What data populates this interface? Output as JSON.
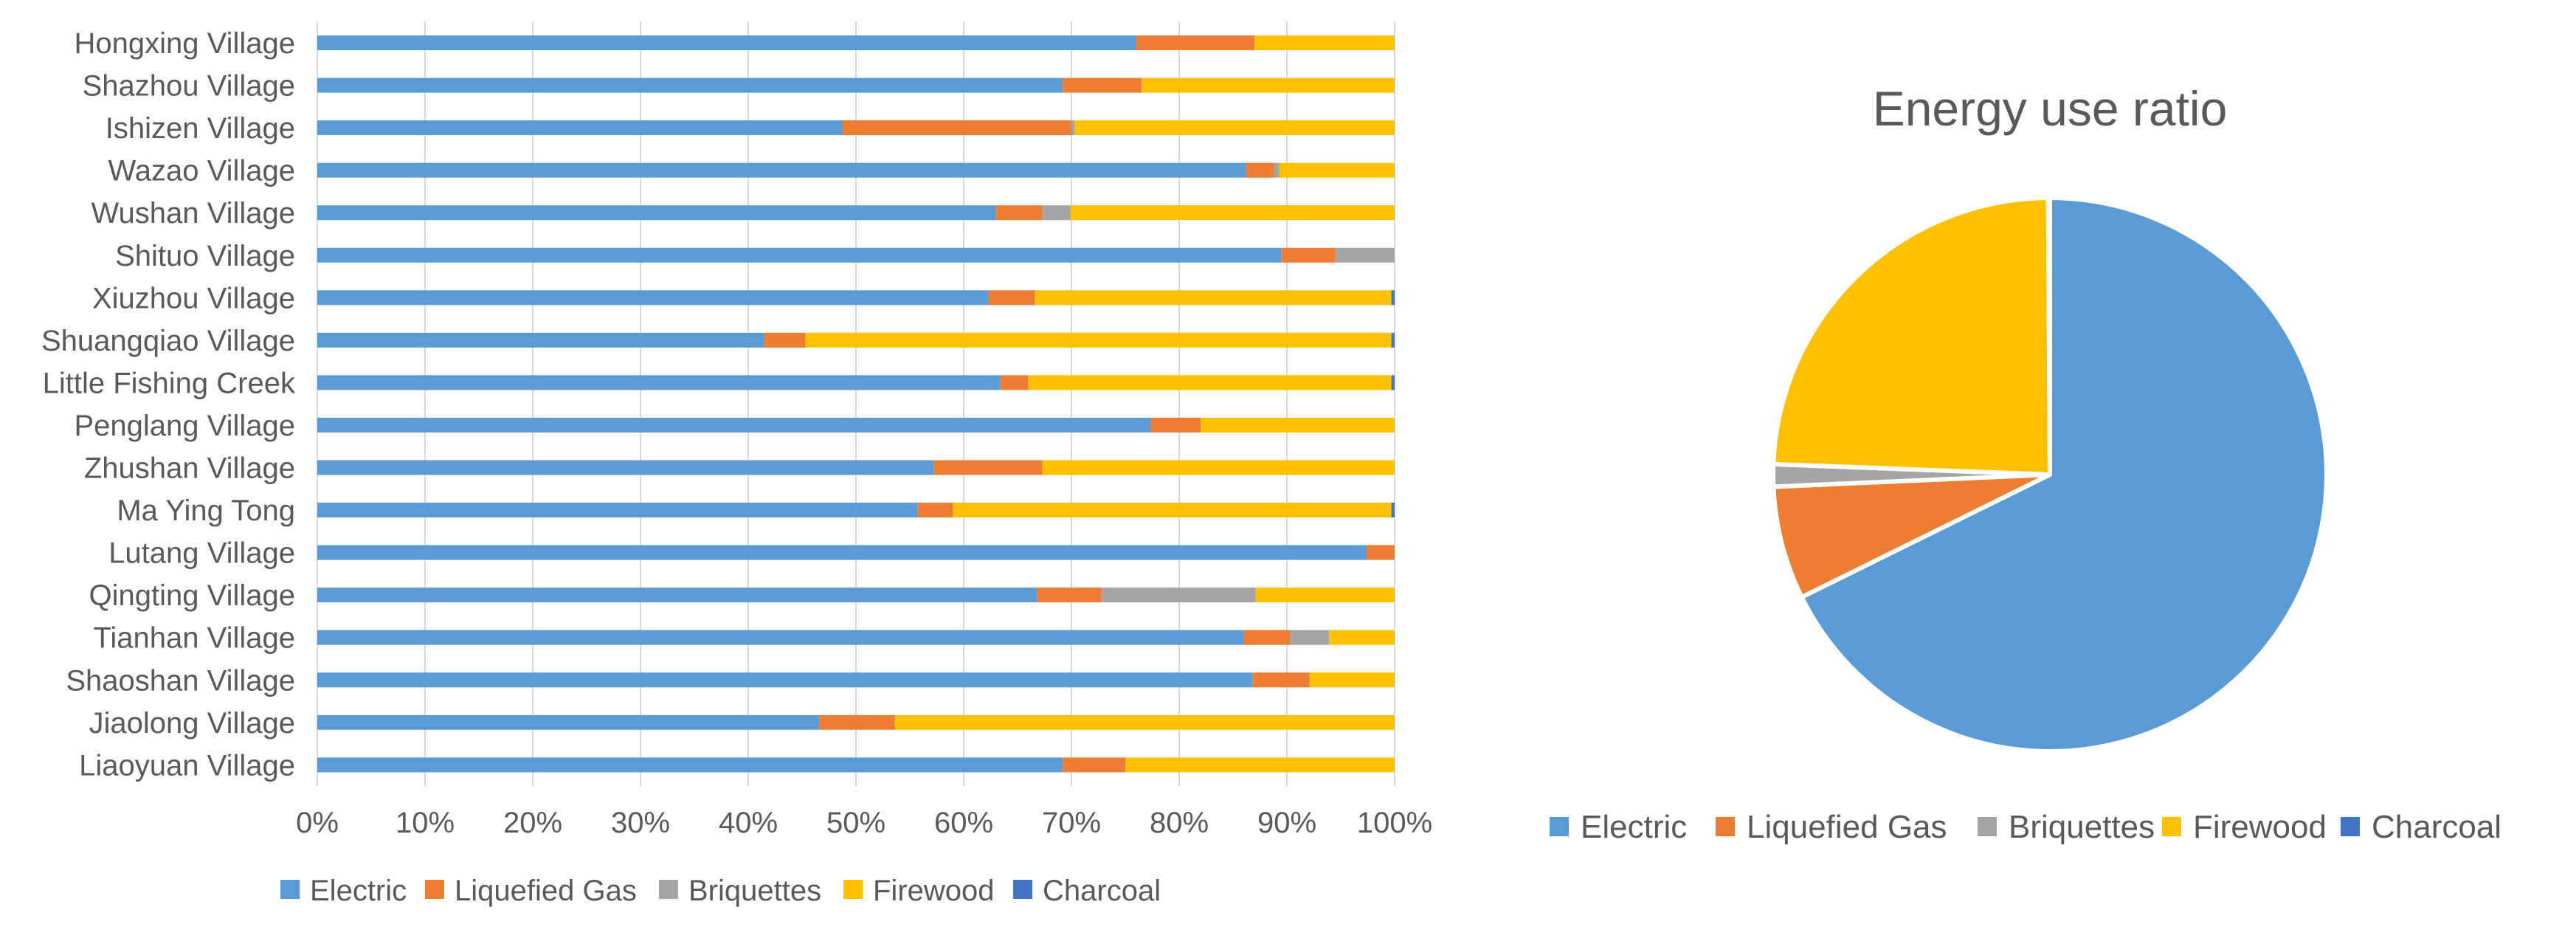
{
  "colors": {
    "Electric": "#5B9BD5",
    "Liquefied Gas": "#ED7D31",
    "Briquettes": "#A5A5A5",
    "Firewood": "#FFC000",
    "Charcoal": "#4472C4",
    "text": "#595959",
    "grid": "#D9D9D9"
  },
  "chart_data": [
    {
      "type": "bar",
      "orientation": "horizontal",
      "stacked": "percent",
      "title": "",
      "xlabel": "",
      "ylabel": "",
      "xlim": [
        0,
        100
      ],
      "x_ticks": [
        "0%",
        "10%",
        "20%",
        "30%",
        "40%",
        "50%",
        "60%",
        "70%",
        "80%",
        "90%",
        "100%"
      ],
      "grid": true,
      "legend_position": "bottom",
      "categories": [
        "Hongxing Village",
        "Shazhou Village",
        "Ishizen Village",
        "Wazao Village",
        "Wushan Village",
        "Shituo Village",
        "Xiuzhou Village",
        "Shuangqiao Village",
        "Little Fishing Creek",
        "Penglang Village",
        "Zhushan Village",
        "Ma Ying Tong",
        "Lutang Village",
        "Qingting Village",
        "Tianhan Village",
        "Shaoshan Village",
        "Jiaolong Village",
        "Liaoyuan Village"
      ],
      "series": [
        {
          "name": "Electric",
          "values": [
            76,
            69.2,
            48.7,
            86.2,
            63,
            89.5,
            62.3,
            41.5,
            63.4,
            77.4,
            57.2,
            55.7,
            97.4,
            66.8,
            86,
            86.8,
            46.6,
            69.2
          ]
        },
        {
          "name": "Liquefied Gas",
          "values": [
            11,
            7.3,
            21.3,
            2.6,
            4.3,
            5,
            4.3,
            3.8,
            2.6,
            4.6,
            10.1,
            3.3,
            2.6,
            6,
            4.3,
            5.3,
            7,
            5.8
          ]
        },
        {
          "name": "Briquettes",
          "values": [
            0,
            0,
            0.3,
            0.5,
            2.6,
            5.5,
            0,
            0,
            0,
            0,
            0,
            0,
            0,
            14.3,
            3.6,
            0,
            0,
            0
          ]
        },
        {
          "name": "Firewood",
          "values": [
            13,
            23.5,
            29.7,
            10.7,
            30.1,
            0,
            33.1,
            54.4,
            33.7,
            18,
            32.7,
            40.7,
            0,
            12.9,
            6.1,
            7.9,
            46.4,
            25
          ]
        },
        {
          "name": "Charcoal",
          "values": [
            0,
            0,
            0,
            0,
            0,
            0,
            0.3,
            0.3,
            0.3,
            0,
            0,
            0.3,
            0,
            0,
            0,
            0,
            0,
            0
          ]
        }
      ]
    },
    {
      "type": "pie",
      "title": "Energy use ratio",
      "legend_position": "bottom",
      "categories": [
        "Electric",
        "Liquefied Gas",
        "Briquettes",
        "Firewood",
        "Charcoal"
      ],
      "values": [
        67.7,
        6.6,
        1.3,
        24.3,
        0.1
      ]
    }
  ]
}
